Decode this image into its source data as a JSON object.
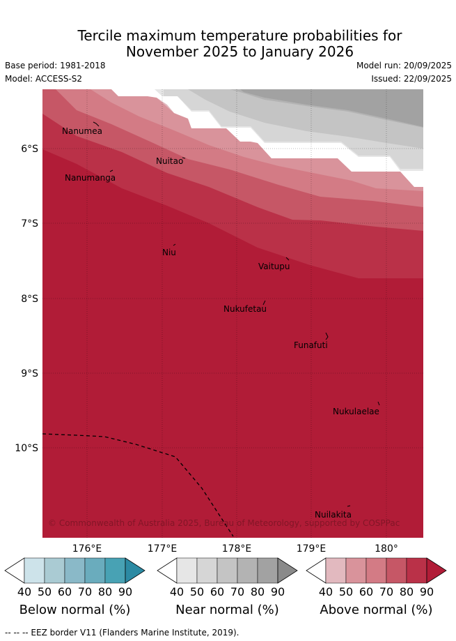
{
  "title_line1": "Tercile maximum temperature probabilities for",
  "title_line2": "November 2025 to January 2026",
  "base_period": "Base period: 1981-2018",
  "model": "Model: ACCESS-S2",
  "model_run": "Model run: 20/09/2025",
  "issued": "Issued: 22/09/2025",
  "map": {
    "lat_range": [
      -11.2,
      -5.2
    ],
    "lon_range": [
      175.35,
      180.5
    ],
    "lat_ticks": [
      "6°S",
      "7°S",
      "8°S",
      "9°S",
      "10°S"
    ],
    "lon_ticks": [
      "176°E",
      "177°E",
      "178°E",
      "179°E",
      "180°"
    ],
    "places": [
      "Nanumea",
      "Nanumanga",
      "Nuitao",
      "Niu",
      "Vaitupu",
      "Nukufetau",
      "Funafuti",
      "Nukulaelae",
      "Nuilakita"
    ],
    "copyright": "© Commonwealth of Australia 2025, Bureau of Meteorology, supported by COSPPac"
  },
  "colorbars": [
    {
      "title": "Below normal (%)",
      "ticks": [
        "40",
        "50",
        "60",
        "70",
        "80",
        "90"
      ],
      "colors": [
        "#ffffff",
        "#cde3ea",
        "#aacbd3",
        "#8ab9c8",
        "#6aacbd",
        "#48a2b4",
        "#2c8aa3"
      ]
    },
    {
      "title": "Near normal (%)",
      "ticks": [
        "40",
        "50",
        "60",
        "70",
        "80",
        "90"
      ],
      "colors": [
        "#ffffff",
        "#e6e6e6",
        "#d6d6d6",
        "#c4c4c4",
        "#b3b3b3",
        "#a2a2a2",
        "#8a8a8a"
      ]
    },
    {
      "title": "Above normal (%)",
      "ticks": [
        "40",
        "50",
        "60",
        "70",
        "80",
        "90"
      ],
      "colors": [
        "#ffffff",
        "#e2b9bf",
        "#d9939b",
        "#d37b85",
        "#c65766",
        "#ba3148",
        "#b11c37"
      ]
    }
  ],
  "footnote": "--  --  -- EEZ border V11 (Flanders Marine Institute, 2019)."
}
